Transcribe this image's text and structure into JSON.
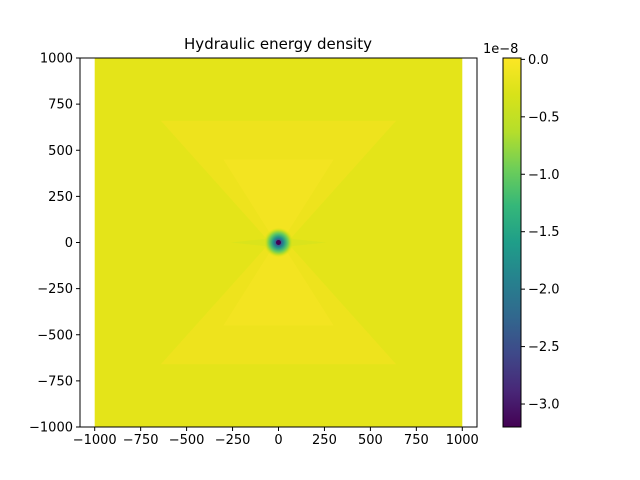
{
  "chart_data": {
    "type": "heatmap",
    "title": "Hydraulic energy density",
    "xlabel": "",
    "ylabel": "",
    "xlim": [
      -1080,
      1080
    ],
    "ylim": [
      -1000,
      1000
    ],
    "data_extent": {
      "x": [
        -1000,
        1000
      ],
      "y": [
        -1000,
        1000
      ]
    },
    "x_ticks": [
      -1000,
      -750,
      -500,
      -250,
      0,
      250,
      500,
      750,
      1000
    ],
    "x_tick_labels": [
      "−1000",
      "−750",
      "−500",
      "−250",
      "0",
      "250",
      "500",
      "750",
      "1000"
    ],
    "y_ticks": [
      1000,
      750,
      500,
      250,
      0,
      -250,
      -500,
      -750,
      -1000
    ],
    "y_tick_labels": [
      "1000",
      "750",
      "500",
      "250",
      "0",
      "−250",
      "−500",
      "−750",
      "−1000"
    ],
    "colormap": "viridis",
    "colorbar": {
      "vmin": -3.2e-08,
      "vmax": 1.2e-10,
      "offset_label": "1e−8",
      "ticks": [
        0.0,
        -0.5,
        -1.0,
        -1.5,
        -2.0,
        -2.5,
        -3.0
      ],
      "tick_labels": [
        "0.0",
        "−0.5",
        "−1.0",
        "−1.5",
        "−2.0",
        "−2.5",
        "−3.0"
      ]
    },
    "field_description": {
      "background_value_normalized": 0.995,
      "cone_value_normalized": 1.0,
      "center": [
        0,
        0
      ],
      "min_value": -3.2e-08,
      "cones": "upper and lower triangular lobes from center to about y = ±650"
    },
    "grid": false
  }
}
